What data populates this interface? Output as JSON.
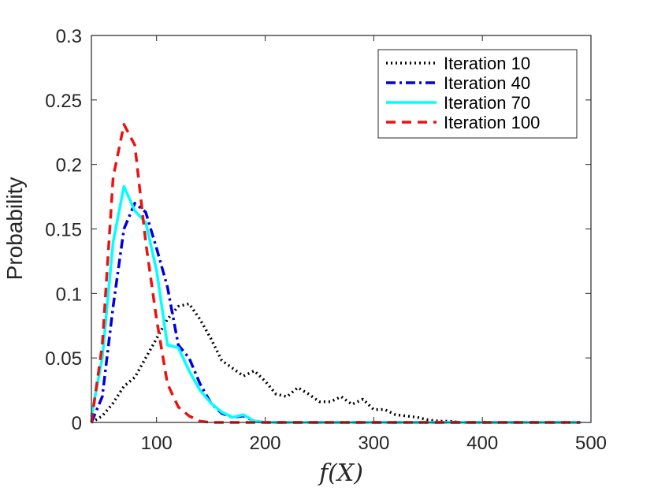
{
  "chart_data": {
    "type": "line",
    "title": "",
    "xlabel": "f(X)",
    "ylabel": "Probability",
    "xlim": [
      40,
      500
    ],
    "ylim": [
      0,
      0.3
    ],
    "xticks": [
      100,
      200,
      300,
      400,
      500
    ],
    "xtick_labels": [
      "100",
      "200",
      "300",
      "400",
      "500"
    ],
    "yticks": [
      0,
      0.05,
      0.1,
      0.15,
      0.2,
      0.25,
      0.3
    ],
    "ytick_labels": [
      "0",
      "0.05",
      "0.1",
      "0.15",
      "0.2",
      "0.25",
      "0.3"
    ],
    "grid": false,
    "legend_position": "top-right",
    "series": [
      {
        "name": "Iteration 10",
        "color": "#000000",
        "style": "dotted",
        "x": [
          40,
          50,
          60,
          70,
          80,
          90,
          100,
          110,
          120,
          130,
          140,
          150,
          160,
          170,
          180,
          190,
          200,
          210,
          220,
          230,
          240,
          250,
          260,
          270,
          280,
          290,
          300,
          310,
          320,
          330,
          340,
          350,
          360,
          370,
          380,
          390,
          400,
          420,
          450,
          490
        ],
        "y": [
          0,
          0.005,
          0.015,
          0.028,
          0.035,
          0.05,
          0.065,
          0.08,
          0.09,
          0.092,
          0.08,
          0.065,
          0.048,
          0.042,
          0.036,
          0.04,
          0.032,
          0.022,
          0.02,
          0.027,
          0.022,
          0.016,
          0.016,
          0.02,
          0.014,
          0.018,
          0.01,
          0.01,
          0.006,
          0.005,
          0.004,
          0.002,
          0.001,
          0.001,
          0,
          0,
          0,
          0,
          0,
          0
        ]
      },
      {
        "name": "Iteration 40",
        "color": "#0000dd",
        "style": "dashdot",
        "x": [
          40,
          50,
          60,
          70,
          80,
          90,
          100,
          110,
          120,
          130,
          140,
          150,
          160,
          170,
          180,
          190,
          200,
          220,
          250,
          300,
          350,
          400,
          450,
          490
        ],
        "y": [
          0,
          0.02,
          0.09,
          0.15,
          0.17,
          0.163,
          0.135,
          0.105,
          0.06,
          0.05,
          0.03,
          0.015,
          0.007,
          0.004,
          0.005,
          0.001,
          0,
          0,
          0,
          0,
          0,
          0,
          0,
          0
        ]
      },
      {
        "name": "Iteration 70",
        "color": "#00ffff",
        "style": "solid",
        "x": [
          40,
          50,
          60,
          70,
          80,
          90,
          100,
          110,
          120,
          130,
          140,
          150,
          160,
          170,
          180,
          190,
          200,
          220,
          250,
          300,
          350,
          400,
          450,
          490
        ],
        "y": [
          0.005,
          0.05,
          0.14,
          0.183,
          0.164,
          0.155,
          0.118,
          0.06,
          0.058,
          0.04,
          0.025,
          0.015,
          0.008,
          0.004,
          0.006,
          0.001,
          0,
          0,
          0,
          0,
          0,
          0,
          0,
          0
        ]
      },
      {
        "name": "Iteration 100",
        "color": "#ee1111",
        "style": "dashed",
        "x": [
          40,
          50,
          60,
          70,
          80,
          90,
          100,
          110,
          120,
          130,
          140,
          150,
          160,
          180,
          200,
          250,
          300,
          350,
          400,
          450,
          490
        ],
        "y": [
          0,
          0.06,
          0.19,
          0.231,
          0.215,
          0.14,
          0.08,
          0.03,
          0.012,
          0.005,
          0.001,
          0,
          0,
          0,
          0,
          0,
          0,
          0,
          0,
          0,
          0
        ]
      }
    ]
  }
}
